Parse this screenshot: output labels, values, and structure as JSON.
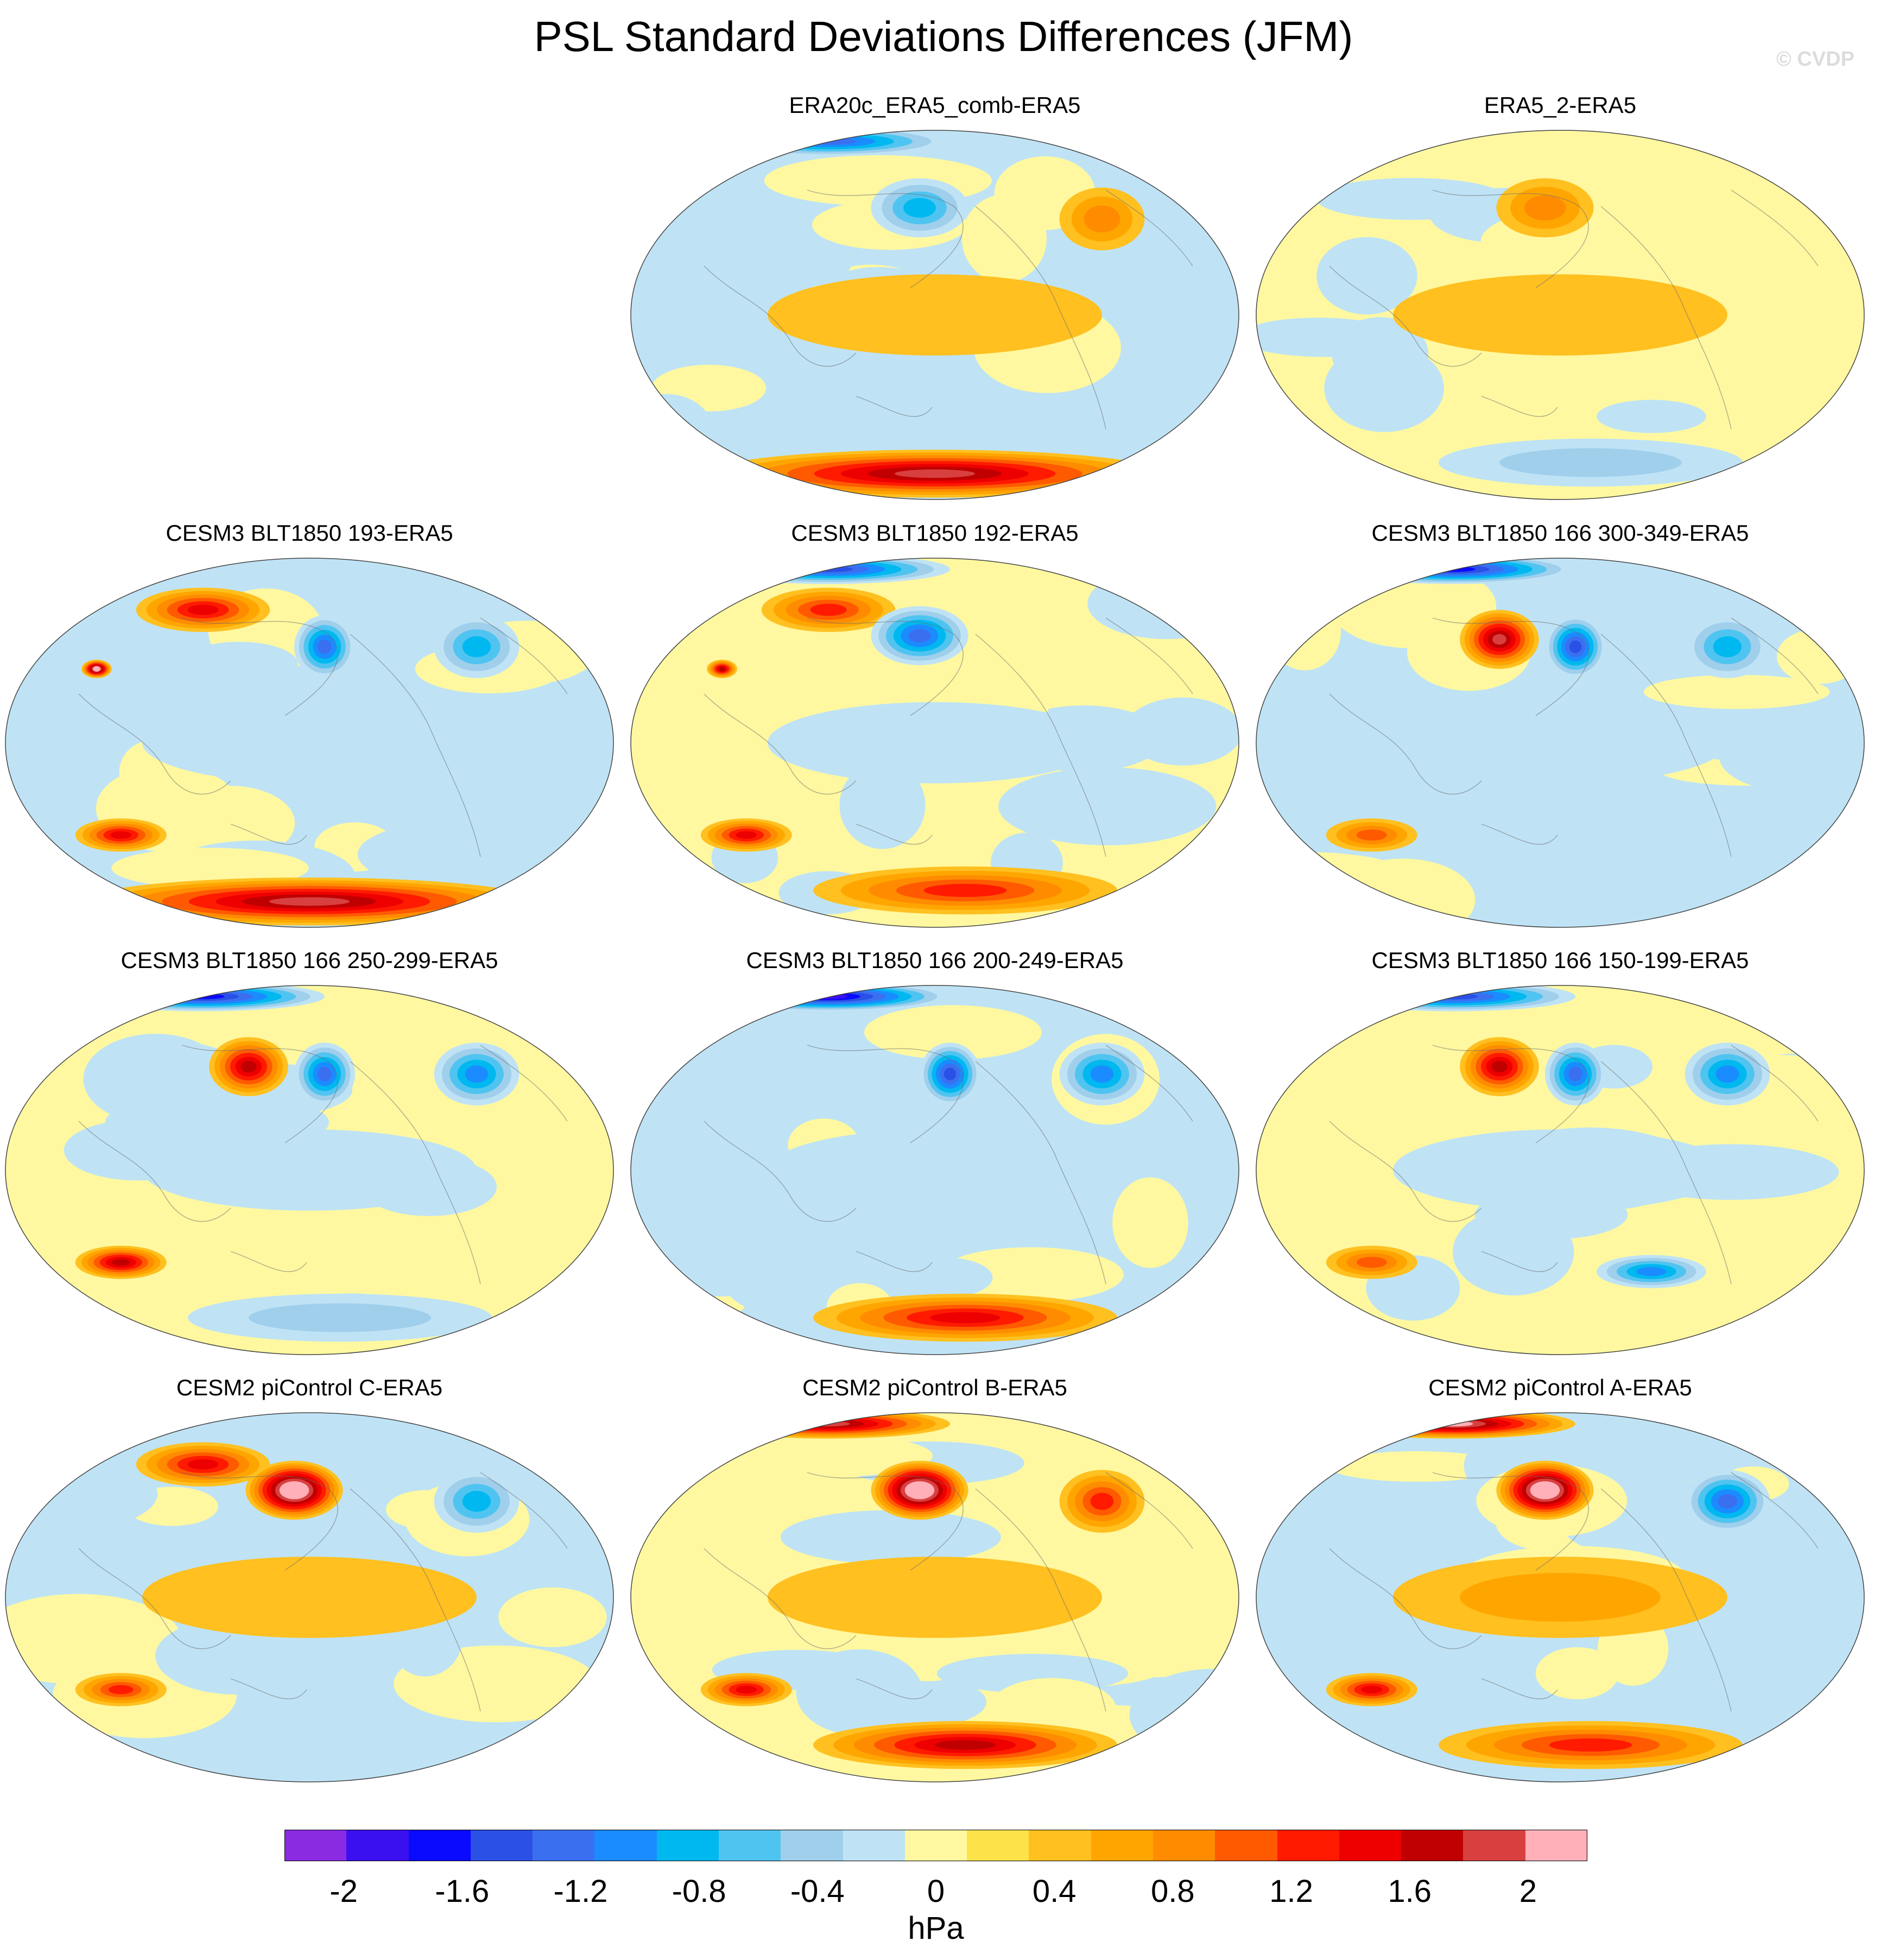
{
  "title": "PSL Standard Deviations Differences (JFM)",
  "watermark": "© CVDP",
  "chart_data": {
    "type": "heatmap",
    "title": "PSL Standard Deviations Differences (JFM)",
    "variable": "PSL",
    "season": "JFM",
    "units": "hPa",
    "projection": "global map",
    "panels": [
      {
        "name": "ERA20c_ERA5_comb-ERA5",
        "row": 0,
        "col": 1,
        "features": [
          {
            "region": "Southern Ocean band",
            "value": 1.6
          },
          {
            "region": "North Pacific",
            "value": -0.8
          },
          {
            "region": "Arctic margin",
            "value": -1.2
          },
          {
            "region": "tropical Indian Ocean",
            "value": -0.2
          },
          {
            "region": "North Atlantic",
            "value": 0.6
          },
          {
            "region": "tropics",
            "value": 0.2
          }
        ]
      },
      {
        "name": "ERA5_2-ERA5",
        "row": 0,
        "col": 2,
        "features": [
          {
            "region": "North Pacific",
            "value": 0.6
          },
          {
            "region": "Southern Ocean",
            "value": -0.4
          },
          {
            "region": "tropics",
            "value": 0.2
          },
          {
            "region": "South Pacific",
            "value": -0.2
          }
        ]
      },
      {
        "name": "CESM3 BLT1850 193-ERA5",
        "row": 1,
        "col": 0,
        "features": [
          {
            "region": "Southern Ocean band",
            "value": 1.6
          },
          {
            "region": "Siberia",
            "value": 1.2
          },
          {
            "region": "Tibetan Plateau",
            "value": 2.0
          },
          {
            "region": "Gulf of Alaska",
            "value": -1.2
          },
          {
            "region": "North Atlantic",
            "value": -0.8
          },
          {
            "region": "South Indian Ocean",
            "value": 1.2
          },
          {
            "region": "tropics",
            "value": -0.2
          }
        ]
      },
      {
        "name": "CESM3 BLT1850 192-ERA5",
        "row": 1,
        "col": 1,
        "features": [
          {
            "region": "North Pacific",
            "value": -1.2
          },
          {
            "region": "Siberia",
            "value": 1.0
          },
          {
            "region": "Arctic margin",
            "value": -1.4
          },
          {
            "region": "Tibetan Plateau",
            "value": 1.4
          },
          {
            "region": "South Indian Ocean",
            "value": 1.2
          },
          {
            "region": "Southern Ocean",
            "value": 1.0
          },
          {
            "region": "tropics",
            "value": -0.2
          }
        ]
      },
      {
        "name": "CESM3 BLT1850 166 300-349-ERA5",
        "row": 1,
        "col": 2,
        "features": [
          {
            "region": "western North Pacific",
            "value": 1.6
          },
          {
            "region": "Gulf of Alaska",
            "value": -1.4
          },
          {
            "region": "Arctic margin",
            "value": -1.6
          },
          {
            "region": "North Atlantic",
            "value": -0.8
          },
          {
            "region": "South Indian Ocean",
            "value": 0.8
          },
          {
            "region": "tropics",
            "value": -0.2
          }
        ]
      },
      {
        "name": "CESM3 BLT1850 166 250-299-ERA5",
        "row": 2,
        "col": 0,
        "features": [
          {
            "region": "western North Pacific",
            "value": 1.4
          },
          {
            "region": "Gulf of Alaska",
            "value": -1.2
          },
          {
            "region": "Arctic margin",
            "value": -1.6
          },
          {
            "region": "North Atlantic",
            "value": -1.0
          },
          {
            "region": "South Indian Ocean",
            "value": 1.4
          },
          {
            "region": "Southern Ocean",
            "value": -0.4
          },
          {
            "region": "tropics",
            "value": -0.2
          }
        ]
      },
      {
        "name": "CESM3 BLT1850 166 200-249-ERA5",
        "row": 2,
        "col": 1,
        "features": [
          {
            "region": "Gulf of Alaska",
            "value": -1.4
          },
          {
            "region": "Arctic margin",
            "value": -1.8
          },
          {
            "region": "North Atlantic",
            "value": -1.0
          },
          {
            "region": "Southern Ocean",
            "value": 1.2
          },
          {
            "region": "tropics",
            "value": -0.2
          }
        ]
      },
      {
        "name": "CESM3 BLT1850 166 150-199-ERA5",
        "row": 2,
        "col": 2,
        "features": [
          {
            "region": "western North Pacific",
            "value": 1.4
          },
          {
            "region": "Gulf of Alaska",
            "value": -1.2
          },
          {
            "region": "Arctic margin",
            "value": -1.4
          },
          {
            "region": "North Atlantic",
            "value": -1.0
          },
          {
            "region": "South Indian Ocean",
            "value": 0.8
          },
          {
            "region": "South Pacific",
            "value": -1.0
          },
          {
            "region": "tropics",
            "value": -0.2
          }
        ]
      },
      {
        "name": "CESM2 piControl C-ERA5",
        "row": 3,
        "col": 0,
        "features": [
          {
            "region": "North Pacific",
            "value": 2.2
          },
          {
            "region": "Siberia",
            "value": 1.2
          },
          {
            "region": "North Atlantic",
            "value": -0.8
          },
          {
            "region": "South Indian Ocean",
            "value": 1.0
          },
          {
            "region": "tropics",
            "value": 0.2
          }
        ]
      },
      {
        "name": "CESM2 piControl B-ERA5",
        "row": 3,
        "col": 1,
        "features": [
          {
            "region": "North Pacific",
            "value": 2.2
          },
          {
            "region": "Arctic margin",
            "value": 1.6
          },
          {
            "region": "North Atlantic",
            "value": 1.0
          },
          {
            "region": "South Indian Ocean",
            "value": 1.2
          },
          {
            "region": "Southern Ocean",
            "value": 1.4
          },
          {
            "region": "tropics",
            "value": 0.2
          }
        ]
      },
      {
        "name": "CESM2 piControl A-ERA5",
        "row": 3,
        "col": 2,
        "features": [
          {
            "region": "North Pacific",
            "value": 2.2
          },
          {
            "region": "Arctic margin",
            "value": 1.8
          },
          {
            "region": "North Atlantic",
            "value": -1.2
          },
          {
            "region": "South Indian Ocean",
            "value": 1.2
          },
          {
            "region": "Southern Ocean",
            "value": 1.0
          },
          {
            "region": "tropics",
            "value": 0.4
          }
        ]
      }
    ],
    "colorbar": {
      "levels": [
        -2.2,
        -2.0,
        -1.8,
        -1.6,
        -1.4,
        -1.2,
        -1.0,
        -0.8,
        -0.6,
        -0.4,
        -0.2,
        0.0,
        0.2,
        0.4,
        0.6,
        0.8,
        1.0,
        1.2,
        1.4,
        1.6,
        1.8,
        2.0,
        2.2
      ],
      "colors": [
        "#8a2be2",
        "#3a10f0",
        "#0a0aff",
        "#2a50e6",
        "#3a70f0",
        "#1a8cff",
        "#00b8f0",
        "#50c4f0",
        "#a0cfec",
        "#bfe3f5",
        "#fff8a0",
        "#fde24a",
        "#ffc020",
        "#ffa500",
        "#ff8c00",
        "#ff5a00",
        "#ff1a00",
        "#ee0000",
        "#c00000",
        "#d84040",
        "#ffb0b8"
      ],
      "tick_labels": [
        "-2",
        "-1.6",
        "-1.2",
        "-0.8",
        "-0.4",
        "0",
        "0.4",
        "0.8",
        "1.2",
        "1.6",
        "2"
      ],
      "tick_values": [
        -2.0,
        -1.6,
        -1.2,
        -0.8,
        -0.4,
        0.0,
        0.4,
        0.8,
        1.2,
        1.6,
        2.0
      ],
      "label": "hPa"
    }
  }
}
